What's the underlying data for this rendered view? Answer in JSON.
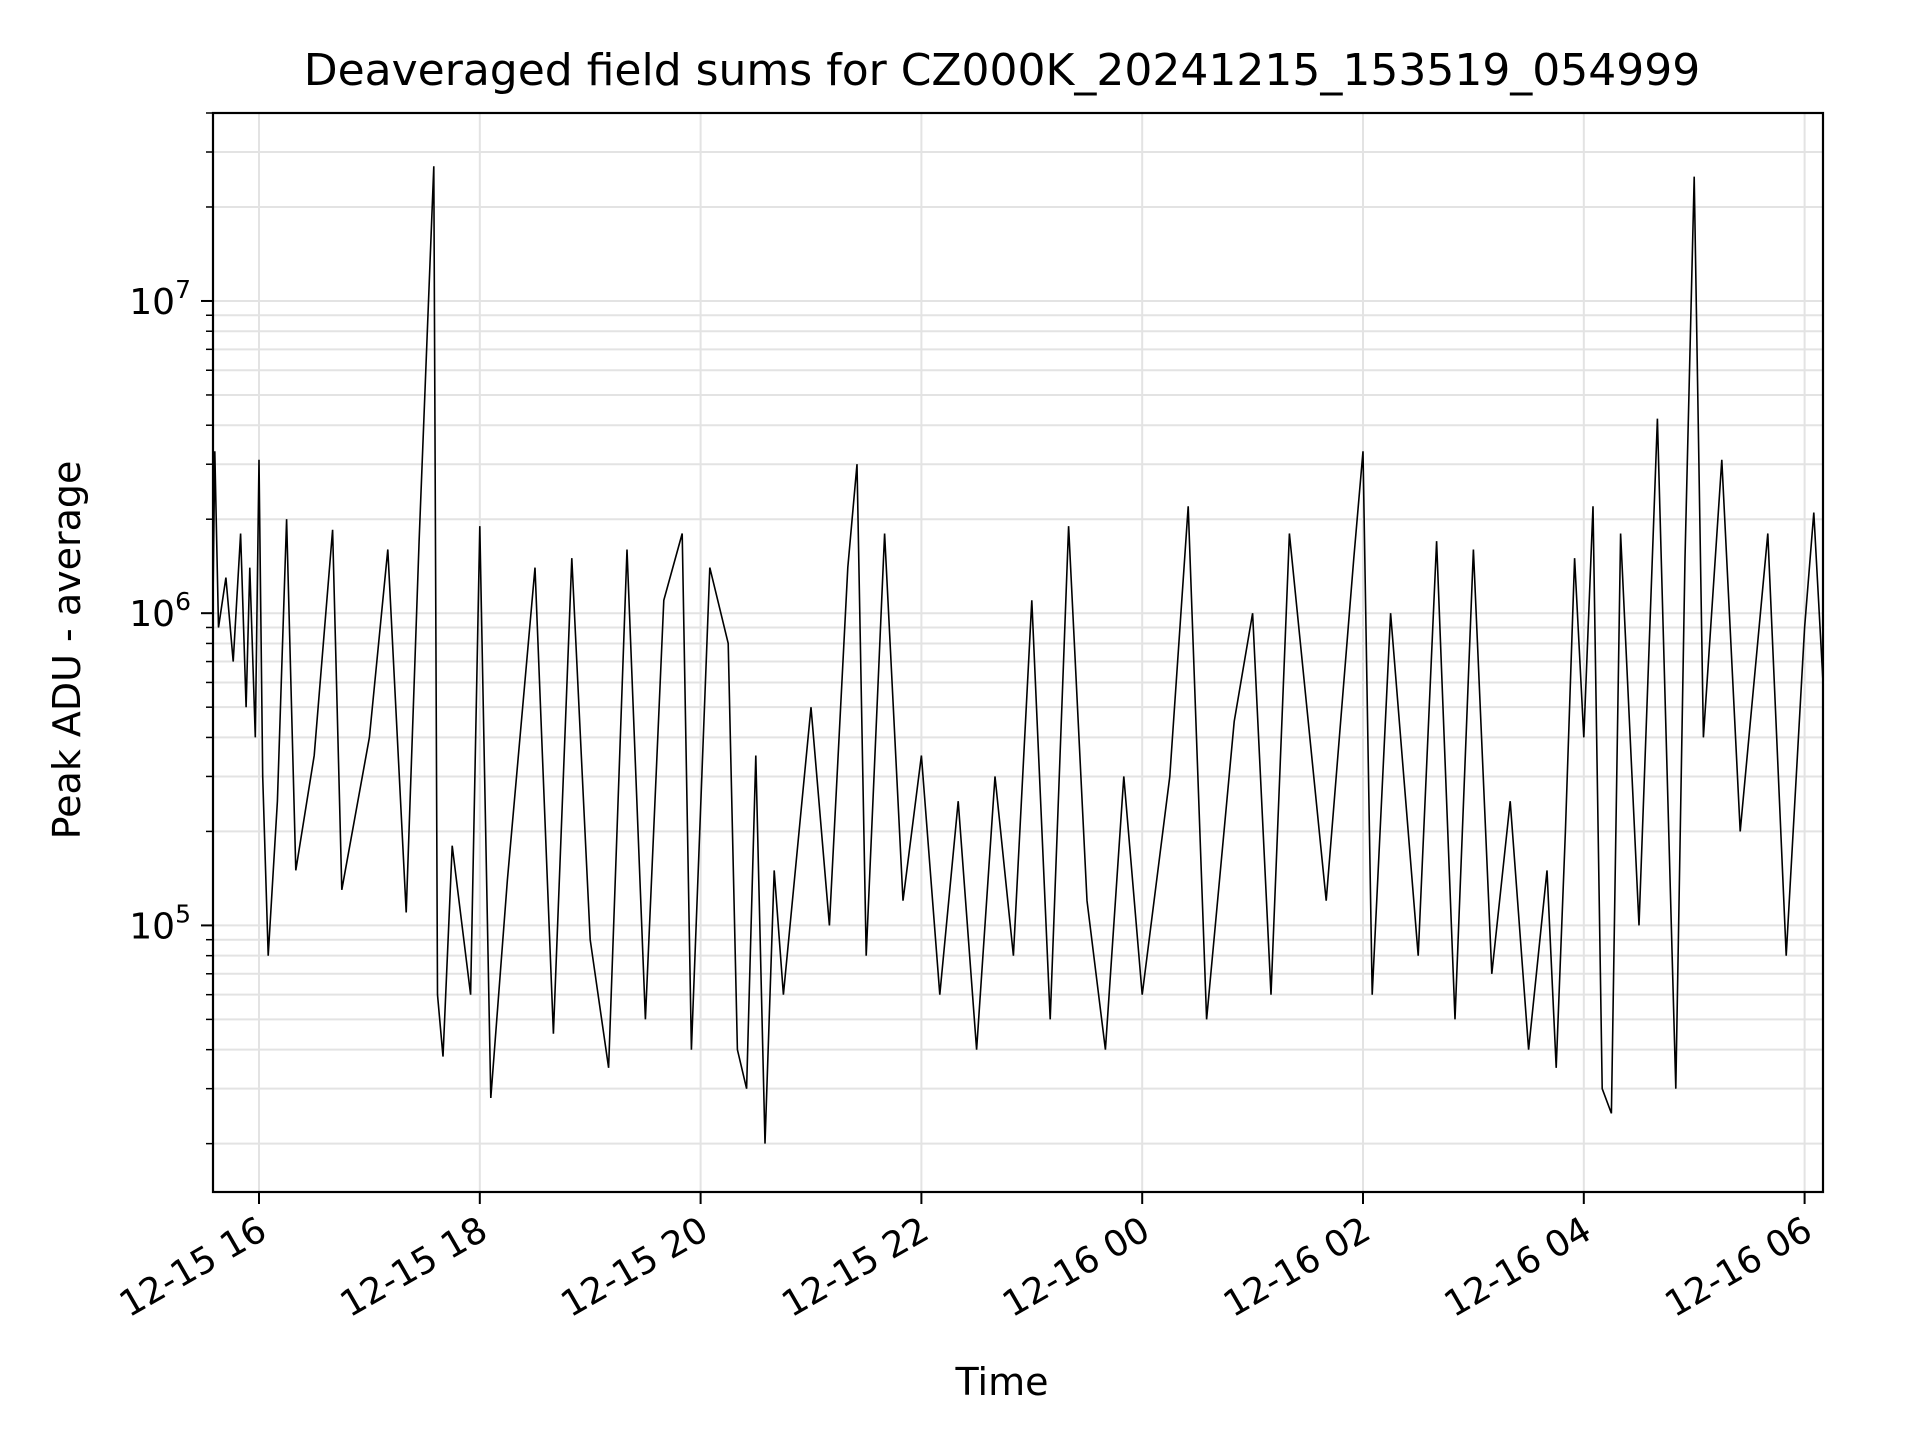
{
  "chart_data": {
    "type": "line",
    "title": "Deaveraged field sums for CZ000K_20241215_153519_054999",
    "xlabel": "Time",
    "ylabel": "Peak ADU - average",
    "yscale": "log",
    "grid": true,
    "xlim": [
      "2024-12-15 15:35",
      "2024-12-16 06:10"
    ],
    "ylim": [
      14000,
      40000000
    ],
    "x_ticks": [
      {
        "value": "2024-12-15 16:00",
        "label": "12-15 16"
      },
      {
        "value": "2024-12-15 18:00",
        "label": "12-15 18"
      },
      {
        "value": "2024-12-15 20:00",
        "label": "12-15 20"
      },
      {
        "value": "2024-12-15 22:00",
        "label": "12-15 22"
      },
      {
        "value": "2024-12-16 00:00",
        "label": "12-16 00"
      },
      {
        "value": "2024-12-16 02:00",
        "label": "12-16 02"
      },
      {
        "value": "2024-12-16 04:00",
        "label": "12-16 04"
      },
      {
        "value": "2024-12-16 06:00",
        "label": "12-16 06"
      }
    ],
    "y_ticks": [
      {
        "value": 100000,
        "base": "10",
        "exp": "5"
      },
      {
        "value": 1000000,
        "base": "10",
        "exp": "6"
      },
      {
        "value": 10000000,
        "base": "10",
        "exp": "7"
      }
    ],
    "series": [
      {
        "color": "#000000",
        "points": [
          [
            "2024-12-15 15:35",
            1100000
          ],
          [
            "2024-12-15 15:36",
            3300000
          ],
          [
            "2024-12-15 15:38",
            900000
          ],
          [
            "2024-12-15 15:42",
            1300000
          ],
          [
            "2024-12-15 15:46",
            700000
          ],
          [
            "2024-12-15 15:50",
            1800000
          ],
          [
            "2024-12-15 15:53",
            500000
          ],
          [
            "2024-12-15 15:55",
            1400000
          ],
          [
            "2024-12-15 15:58",
            400000
          ],
          [
            "2024-12-15 16:00",
            3100000
          ],
          [
            "2024-12-15 16:02",
            300000
          ],
          [
            "2024-12-15 16:05",
            80000
          ],
          [
            "2024-12-15 16:10",
            250000
          ],
          [
            "2024-12-15 16:15",
            2000000
          ],
          [
            "2024-12-15 16:20",
            150000
          ],
          [
            "2024-12-15 16:30",
            350000
          ],
          [
            "2024-12-15 16:40",
            1850000
          ],
          [
            "2024-12-15 16:45",
            130000
          ],
          [
            "2024-12-15 17:00",
            400000
          ],
          [
            "2024-12-15 17:10",
            1600000
          ],
          [
            "2024-12-15 17:20",
            110000
          ],
          [
            "2024-12-15 17:27",
            1700000
          ],
          [
            "2024-12-15 17:35",
            27000000
          ],
          [
            "2024-12-15 17:37",
            60000
          ],
          [
            "2024-12-15 17:40",
            38000
          ],
          [
            "2024-12-15 17:45",
            180000
          ],
          [
            "2024-12-15 17:55",
            60000
          ],
          [
            "2024-12-15 18:00",
            1900000
          ],
          [
            "2024-12-15 18:06",
            28000
          ],
          [
            "2024-12-15 18:15",
            140000
          ],
          [
            "2024-12-15 18:30",
            1400000
          ],
          [
            "2024-12-15 18:40",
            45000
          ],
          [
            "2024-12-15 18:50",
            1500000
          ],
          [
            "2024-12-15 19:00",
            90000
          ],
          [
            "2024-12-15 19:10",
            35000
          ],
          [
            "2024-12-15 19:20",
            1600000
          ],
          [
            "2024-12-15 19:30",
            50000
          ],
          [
            "2024-12-15 19:40",
            1100000
          ],
          [
            "2024-12-15 19:50",
            1800000
          ],
          [
            "2024-12-15 19:55",
            40000
          ],
          [
            "2024-12-15 20:05",
            1400000
          ],
          [
            "2024-12-15 20:15",
            800000
          ],
          [
            "2024-12-15 20:20",
            40000
          ],
          [
            "2024-12-15 20:25",
            30000
          ],
          [
            "2024-12-15 20:30",
            350000
          ],
          [
            "2024-12-15 20:35",
            20000
          ],
          [
            "2024-12-15 20:40",
            150000
          ],
          [
            "2024-12-15 20:45",
            60000
          ],
          [
            "2024-12-15 21:00",
            500000
          ],
          [
            "2024-12-15 21:10",
            100000
          ],
          [
            "2024-12-15 21:20",
            1400000
          ],
          [
            "2024-12-15 21:25",
            3000000
          ],
          [
            "2024-12-15 21:30",
            80000
          ],
          [
            "2024-12-15 21:40",
            1800000
          ],
          [
            "2024-12-15 21:50",
            120000
          ],
          [
            "2024-12-15 22:00",
            350000
          ],
          [
            "2024-12-15 22:10",
            60000
          ],
          [
            "2024-12-15 22:20",
            250000
          ],
          [
            "2024-12-15 22:30",
            40000
          ],
          [
            "2024-12-15 22:40",
            300000
          ],
          [
            "2024-12-15 22:50",
            80000
          ],
          [
            "2024-12-15 23:00",
            1100000
          ],
          [
            "2024-12-15 23:10",
            50000
          ],
          [
            "2024-12-15 23:20",
            1900000
          ],
          [
            "2024-12-15 23:30",
            120000
          ],
          [
            "2024-12-15 23:40",
            40000
          ],
          [
            "2024-12-15 23:50",
            300000
          ],
          [
            "2024-12-16 00:00",
            60000
          ],
          [
            "2024-12-16 00:15",
            300000
          ],
          [
            "2024-12-16 00:25",
            2200000
          ],
          [
            "2024-12-16 00:35",
            50000
          ],
          [
            "2024-12-16 00:50",
            450000
          ],
          [
            "2024-12-16 01:00",
            1000000
          ],
          [
            "2024-12-16 01:10",
            60000
          ],
          [
            "2024-12-16 01:20",
            1800000
          ],
          [
            "2024-12-16 01:40",
            120000
          ],
          [
            "2024-12-16 01:55",
            1500000
          ],
          [
            "2024-12-16 02:00",
            3300000
          ],
          [
            "2024-12-16 02:05",
            60000
          ],
          [
            "2024-12-16 02:15",
            1000000
          ],
          [
            "2024-12-16 02:30",
            80000
          ],
          [
            "2024-12-16 02:40",
            1700000
          ],
          [
            "2024-12-16 02:50",
            50000
          ],
          [
            "2024-12-16 03:00",
            1600000
          ],
          [
            "2024-12-16 03:10",
            70000
          ],
          [
            "2024-12-16 03:20",
            250000
          ],
          [
            "2024-12-16 03:30",
            40000
          ],
          [
            "2024-12-16 03:40",
            150000
          ],
          [
            "2024-12-16 03:45",
            35000
          ],
          [
            "2024-12-16 03:50",
            200000
          ],
          [
            "2024-12-16 03:55",
            1500000
          ],
          [
            "2024-12-16 04:00",
            400000
          ],
          [
            "2024-12-16 04:05",
            2200000
          ],
          [
            "2024-12-16 04:10",
            30000
          ],
          [
            "2024-12-16 04:15",
            25000
          ],
          [
            "2024-12-16 04:20",
            1800000
          ],
          [
            "2024-12-16 04:30",
            100000
          ],
          [
            "2024-12-16 04:40",
            4200000
          ],
          [
            "2024-12-16 04:50",
            30000
          ],
          [
            "2024-12-16 04:55",
            1500000
          ],
          [
            "2024-12-16 05:00",
            25000000
          ],
          [
            "2024-12-16 05:05",
            400000
          ],
          [
            "2024-12-16 05:15",
            3100000
          ],
          [
            "2024-12-16 05:25",
            200000
          ],
          [
            "2024-12-16 05:40",
            1800000
          ],
          [
            "2024-12-16 05:50",
            80000
          ],
          [
            "2024-12-16 06:00",
            900000
          ],
          [
            "2024-12-16 06:05",
            2100000
          ],
          [
            "2024-12-16 06:10",
            600000
          ]
        ]
      }
    ]
  }
}
